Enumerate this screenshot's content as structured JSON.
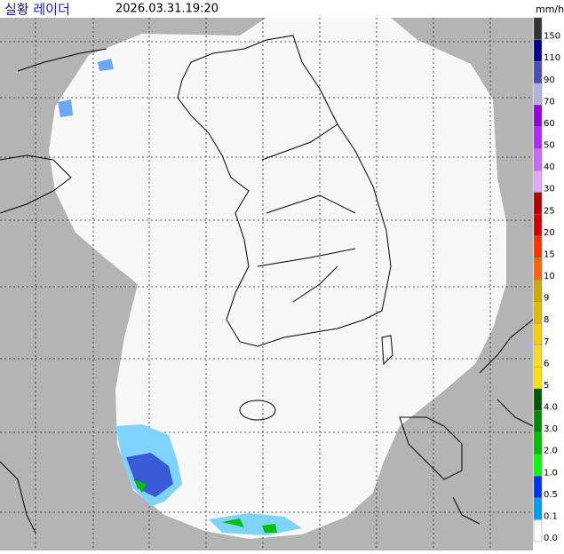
{
  "header": {
    "title": "실황 레이더",
    "timestamp": "2026.03.31.19:20"
  },
  "legend": {
    "unit": "mm/h",
    "items": [
      {
        "label": "150",
        "color": "#333333"
      },
      {
        "label": "110",
        "color": "#000390"
      },
      {
        "label": "90",
        "color": "#4c4eb1"
      },
      {
        "label": "70",
        "color": "#b3b4de"
      },
      {
        "label": "60",
        "color": "#9300e4"
      },
      {
        "label": "50",
        "color": "#b329ff"
      },
      {
        "label": "40",
        "color": "#c969ff"
      },
      {
        "label": "30",
        "color": "#e0a9ff"
      },
      {
        "label": "25",
        "color": "#b40000"
      },
      {
        "label": "20",
        "color": "#d20000"
      },
      {
        "label": "15",
        "color": "#ff3200"
      },
      {
        "label": "10",
        "color": "#ff6600"
      },
      {
        "label": "9",
        "color": "#ccaa00"
      },
      {
        "label": "8",
        "color": "#e0b900"
      },
      {
        "label": "7",
        "color": "#f9cd00"
      },
      {
        "label": "6",
        "color": "#ffdc1f"
      },
      {
        "label": "5",
        "color": "#ffe100"
      },
      {
        "label": "4.0",
        "color": "#005a00"
      },
      {
        "label": "3.0",
        "color": "#008c00"
      },
      {
        "label": "2.0",
        "color": "#00be00"
      },
      {
        "label": "1.0",
        "color": "#00ff00"
      },
      {
        "label": "0.5",
        "color": "#0033f5"
      },
      {
        "label": "0.1",
        "color": "#009bf5"
      },
      {
        "label": "0.0",
        "color": "#ffffff"
      }
    ]
  }
}
